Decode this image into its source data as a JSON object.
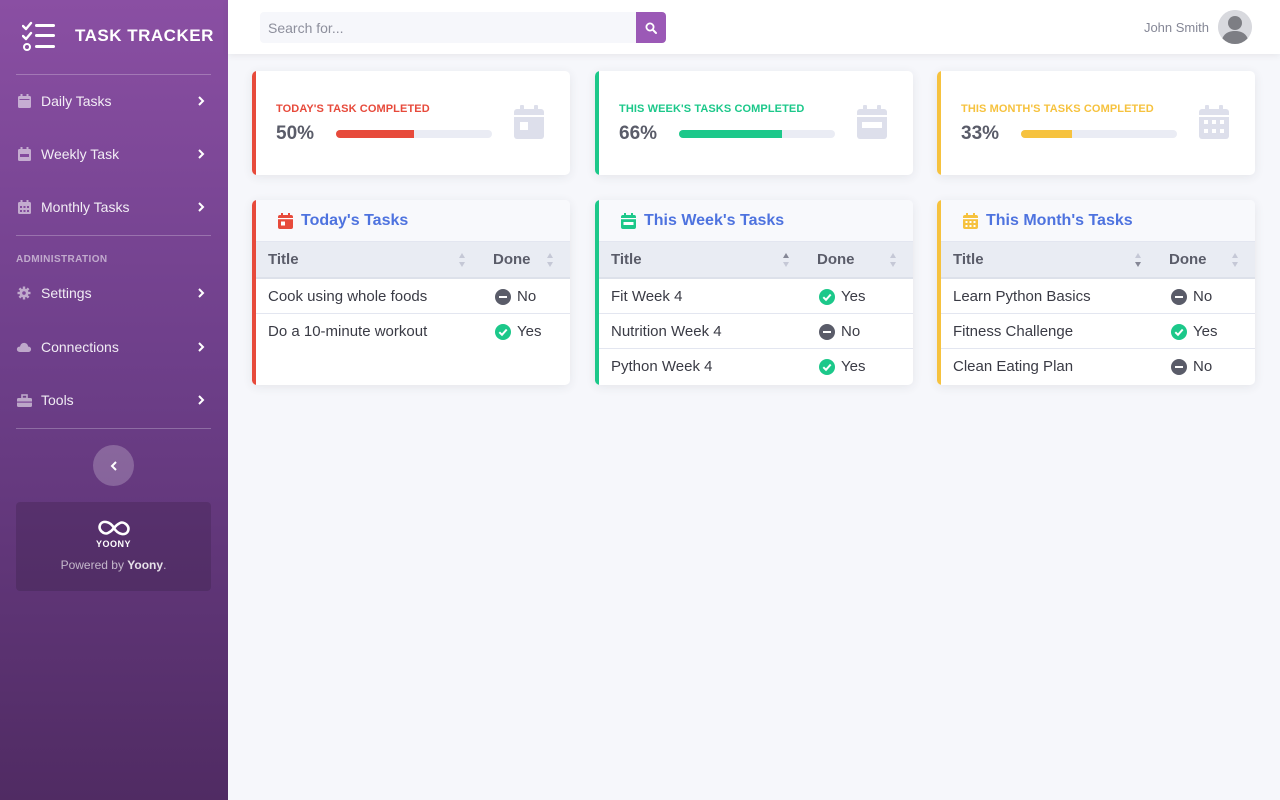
{
  "brand": {
    "title": "TASK TRACKER"
  },
  "sidebar": {
    "items": [
      {
        "label": "Daily Tasks"
      },
      {
        "label": "Weekly Task"
      },
      {
        "label": "Monthly Tasks"
      }
    ],
    "admin_heading": "ADMINISTRATION",
    "admin_items": [
      {
        "label": "Settings"
      },
      {
        "label": "Connections"
      },
      {
        "label": "Tools"
      }
    ],
    "promo": {
      "logo_text": "YOONY",
      "text_prefix": "Powered by ",
      "text_brand": "Yoony",
      "text_suffix": "."
    }
  },
  "search": {
    "placeholder": "Search for..."
  },
  "user": {
    "name": "John Smith"
  },
  "stats": [
    {
      "label": "TODAY'S TASK COMPLETED",
      "value": "50%",
      "progress": 0.5,
      "color": "#e74a3b"
    },
    {
      "label": "THIS WEEK'S TASKS COMPLETED",
      "value": "66%",
      "progress": 0.66,
      "color": "#1cc88a"
    },
    {
      "label": "THIS MONTH'S TASKS COMPLETED",
      "value": "33%",
      "progress": 0.33,
      "color": "#f6c23e"
    }
  ],
  "task_tables": [
    {
      "title": "Today's Tasks",
      "color": "#e74a3b",
      "columns": [
        "Title",
        "Done"
      ],
      "rows": [
        {
          "title": "Cook using whole foods",
          "done": "No"
        },
        {
          "title": "Do a 10-minute workout",
          "done": "Yes"
        }
      ]
    },
    {
      "title": "This Week's Tasks",
      "color": "#1cc88a",
      "columns": [
        "Title",
        "Done"
      ],
      "rows": [
        {
          "title": "Fit Week 4",
          "done": "Yes"
        },
        {
          "title": "Nutrition Week 4",
          "done": "No"
        },
        {
          "title": "Python Week 4",
          "done": "Yes"
        }
      ]
    },
    {
      "title": "This Month's Tasks",
      "color": "#f6c23e",
      "columns": [
        "Title",
        "Done"
      ],
      "rows": [
        {
          "title": "Learn Python Basics",
          "done": "No"
        },
        {
          "title": "Fitness Challenge",
          "done": "Yes"
        },
        {
          "title": "Clean Eating Plan",
          "done": "No"
        }
      ]
    }
  ],
  "colors": {
    "accent": "#9b59b6",
    "primary_text": "#4e73df",
    "yes": "#1cc88a",
    "no": "#5a5c69"
  }
}
